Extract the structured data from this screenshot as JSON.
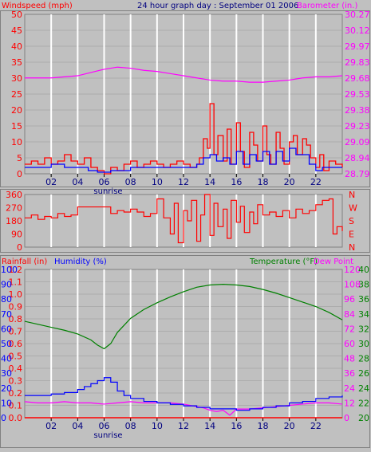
{
  "header": {
    "title": "24 hour graph day : September 01 2006",
    "left_label": "Windspeed (mph)",
    "right_label": "Barometer (in.)"
  },
  "colors": {
    "background": "#c0c0c0",
    "plot_bg": "#c0c0c0",
    "grid": "#ffffff",
    "wind": "#ff0000",
    "wind_avg": "#0000ff",
    "baro": "#ff00ff",
    "temp": "#008000",
    "dew": "#ff00ff",
    "humidity": "#0000ff",
    "rain": "#ff0000",
    "title": "#000080",
    "dir_text": "#ff0000"
  },
  "x_axis": {
    "ticks": [
      "02",
      "04",
      "06",
      "08",
      "10",
      "12",
      "14",
      "16",
      "18",
      "20",
      "22"
    ],
    "sunrise_label": "sunrise"
  },
  "direction_labels": [
    "N",
    "W",
    "S",
    "E",
    "N"
  ],
  "bottom_header": {
    "rain_label": "Rainfall (in)",
    "humidity_label": "Humidity (%)",
    "temp_label": "Temperature (°F)",
    "dew_label": "Dew Point"
  },
  "chart_data": [
    {
      "type": "line",
      "name": "wind-baro",
      "xlim": [
        0,
        24
      ],
      "left_axis": {
        "label": "Windspeed (mph)",
        "ylim": [
          0,
          50
        ],
        "ticks": [
          "0",
          "5",
          "10",
          "15",
          "20",
          "25",
          "30",
          "35",
          "40",
          "45",
          "50"
        ]
      },
      "right_axis": {
        "label": "Barometer (in.)",
        "ylim": [
          28.79,
          30.27
        ],
        "ticks": [
          "28.79",
          "28.94",
          "29.09",
          "29.23",
          "29.38",
          "29.53",
          "29.68",
          "29.83",
          "29.97",
          "30.12",
          "30.27"
        ]
      },
      "series": [
        {
          "name": "Windspeed (mph)",
          "axis": "left",
          "style": "step",
          "x": [
            0,
            0.5,
            1,
            1.5,
            2,
            2.5,
            3,
            3.5,
            4,
            4.5,
            5,
            5.5,
            6,
            6.5,
            7,
            7.5,
            8,
            8.5,
            9,
            9.5,
            10,
            10.5,
            11,
            11.5,
            12,
            12.5,
            13,
            13.2,
            13.5,
            13.8,
            14,
            14.3,
            14.6,
            15,
            15.3,
            15.6,
            16,
            16.3,
            16.6,
            17,
            17.3,
            17.6,
            18,
            18.3,
            18.6,
            19,
            19.3,
            19.6,
            20,
            20.3,
            20.6,
            21,
            21.3,
            21.6,
            22,
            22.3,
            22.6,
            23,
            23.5,
            24
          ],
          "y": [
            3,
            4,
            3,
            5,
            3,
            4,
            6,
            4,
            3,
            5,
            2,
            1,
            0,
            2,
            1,
            3,
            4,
            2,
            3,
            4,
            3,
            2,
            3,
            4,
            3,
            2,
            3,
            5,
            11,
            8,
            22,
            6,
            12,
            4,
            14,
            3,
            16,
            7,
            2,
            13,
            9,
            4,
            15,
            6,
            3,
            13,
            8,
            3,
            10,
            12,
            6,
            11,
            9,
            5,
            2,
            6,
            1,
            4,
            3,
            2
          ]
        },
        {
          "name": "Average Windspeed",
          "axis": "left",
          "style": "step",
          "x": [
            0,
            1,
            2,
            3,
            4,
            4.8,
            5.5,
            6,
            6.5,
            7,
            8,
            9,
            10,
            11,
            12,
            13,
            13.5,
            14,
            14.5,
            15,
            15.5,
            16,
            16.5,
            17,
            17.5,
            18,
            18.5,
            19,
            19.5,
            20,
            20.5,
            21,
            21.5,
            22,
            22.5,
            23,
            24
          ],
          "y": [
            2,
            2,
            3,
            2,
            2,
            1,
            0.5,
            0.5,
            1,
            1,
            2,
            2,
            2,
            2,
            2,
            3,
            5,
            6,
            4,
            5,
            3,
            7,
            3,
            6,
            4,
            7,
            3,
            7,
            4,
            8,
            6,
            6,
            3,
            1,
            2,
            2,
            2
          ]
        },
        {
          "name": "Barometer (in.)",
          "axis": "right",
          "style": "line",
          "x": [
            0,
            2,
            3,
            4,
            5,
            6,
            7,
            8,
            9,
            10,
            11,
            12,
            13,
            14,
            15,
            16,
            17,
            18,
            19,
            20,
            21,
            22,
            23,
            24
          ],
          "y": [
            29.68,
            29.68,
            29.69,
            29.7,
            29.73,
            29.76,
            29.78,
            29.77,
            29.75,
            29.74,
            29.72,
            29.7,
            29.68,
            29.66,
            29.65,
            29.65,
            29.64,
            29.64,
            29.65,
            29.66,
            29.68,
            29.69,
            29.69,
            29.7
          ]
        }
      ]
    },
    {
      "type": "line",
      "name": "wind-direction",
      "xlim": [
        0,
        24
      ],
      "left_axis": {
        "ylim": [
          0,
          360
        ],
        "ticks": [
          "0",
          "90",
          "180",
          "270",
          "360"
        ]
      },
      "right_axis": {
        "labels": [
          "N",
          "W",
          "S",
          "E",
          "N"
        ]
      },
      "series": [
        {
          "name": "Wind Direction",
          "style": "step",
          "x": [
            0,
            0.5,
            1,
            1.5,
            2,
            2.5,
            3,
            3.5,
            4,
            4.5,
            5,
            5.5,
            6,
            6.5,
            7,
            7.5,
            8,
            8.5,
            9,
            9.5,
            10,
            10.5,
            11,
            11.3,
            11.6,
            12,
            12.3,
            12.6,
            13,
            13.3,
            13.6,
            14,
            14.3,
            14.6,
            15,
            15.3,
            15.6,
            16,
            16.3,
            16.6,
            17,
            17.3,
            17.6,
            18,
            18.5,
            19,
            19.5,
            20,
            20.5,
            21,
            21.5,
            22,
            22.5,
            23,
            23.3,
            23.6,
            24
          ],
          "y": [
            200,
            220,
            190,
            210,
            200,
            230,
            210,
            220,
            275,
            275,
            275,
            275,
            275,
            230,
            250,
            240,
            260,
            240,
            210,
            230,
            330,
            200,
            90,
            300,
            30,
            250,
            180,
            320,
            40,
            220,
            360,
            80,
            300,
            140,
            260,
            60,
            320,
            170,
            280,
            100,
            240,
            160,
            290,
            220,
            240,
            210,
            250,
            200,
            260,
            230,
            250,
            290,
            320,
            330,
            90,
            140,
            110
          ]
        }
      ]
    },
    {
      "type": "line",
      "name": "temp-humidity-rain",
      "xlim": [
        0,
        24
      ],
      "rain_axis": {
        "label": "Rainfall (in)",
        "ylim": [
          0,
          1.2
        ],
        "ticks": [
          "0.0",
          "0.1",
          "0.2",
          "0.3",
          "0.4",
          "0.5",
          "0.6",
          "0.7",
          "0.8",
          "0.9",
          "1.0",
          "1.1",
          "1.2"
        ]
      },
      "humidity_axis": {
        "label": "Humidity (%)",
        "ylim": [
          0,
          100
        ],
        "ticks": [
          "0",
          "10",
          "20",
          "30",
          "40",
          "50",
          "60",
          "70",
          "80",
          "90",
          "100"
        ]
      },
      "temp_axis": {
        "label": "Temperature (°F)",
        "ylim": [
          20,
          40
        ],
        "ticks": [
          "20",
          "22",
          "24",
          "26",
          "28",
          "30",
          "32",
          "34",
          "36",
          "38",
          "40"
        ]
      },
      "dew_axis": {
        "label": "Dew Point",
        "ylim": [
          0,
          120
        ],
        "ticks": [
          "0",
          "12",
          "24",
          "36",
          "48",
          "60",
          "72",
          "84",
          "96",
          "108",
          "120"
        ]
      },
      "series": [
        {
          "name": "Temperature (°F)",
          "axis": "temp",
          "x": [
            0,
            1,
            2,
            3,
            4,
            5,
            5.5,
            6,
            6.5,
            7,
            8,
            9,
            10,
            11,
            12,
            13,
            14,
            15,
            16,
            17,
            18,
            19,
            20,
            21,
            22,
            23,
            24
          ],
          "y": [
            33,
            32.6,
            32.2,
            31.8,
            31.3,
            30.5,
            29.8,
            29.3,
            30.0,
            31.5,
            33.4,
            34.6,
            35.5,
            36.3,
            37.0,
            37.6,
            37.9,
            38.0,
            37.9,
            37.7,
            37.3,
            36.8,
            36.2,
            35.6,
            35.0,
            34.2,
            33.2
          ]
        },
        {
          "name": "Humidity (%)",
          "axis": "humidity",
          "style": "step",
          "x": [
            0,
            1,
            2,
            3,
            4,
            4.5,
            5,
            5.5,
            6,
            6.5,
            7,
            7.5,
            8,
            9,
            10,
            11,
            12,
            13,
            14,
            15,
            16,
            17,
            18,
            19,
            20,
            21,
            22,
            23,
            24
          ],
          "y": [
            15,
            15,
            16,
            17,
            19,
            21,
            23,
            25,
            27,
            24,
            18,
            15,
            13,
            11,
            10,
            9,
            8,
            7,
            6,
            6,
            5,
            6,
            7,
            8,
            10,
            11,
            13,
            14,
            15
          ]
        },
        {
          "name": "Dew Point",
          "axis": "dew",
          "x": [
            0,
            1,
            2,
            3,
            4,
            5,
            6,
            7,
            8,
            9,
            10,
            11,
            12,
            13,
            13.5,
            14,
            14.5,
            15,
            15.5,
            16,
            17,
            18,
            19,
            20,
            21,
            22,
            23,
            24
          ],
          "y": [
            13,
            12,
            12,
            13,
            12,
            12,
            11,
            12,
            13,
            12,
            12,
            12,
            11,
            9,
            8,
            6,
            5,
            6,
            2,
            7,
            7,
            8,
            9,
            10,
            11,
            12,
            12,
            11
          ]
        },
        {
          "name": "Rainfall (in)",
          "axis": "rain",
          "x": [
            0,
            24
          ],
          "y": [
            0,
            0
          ]
        }
      ]
    }
  ]
}
